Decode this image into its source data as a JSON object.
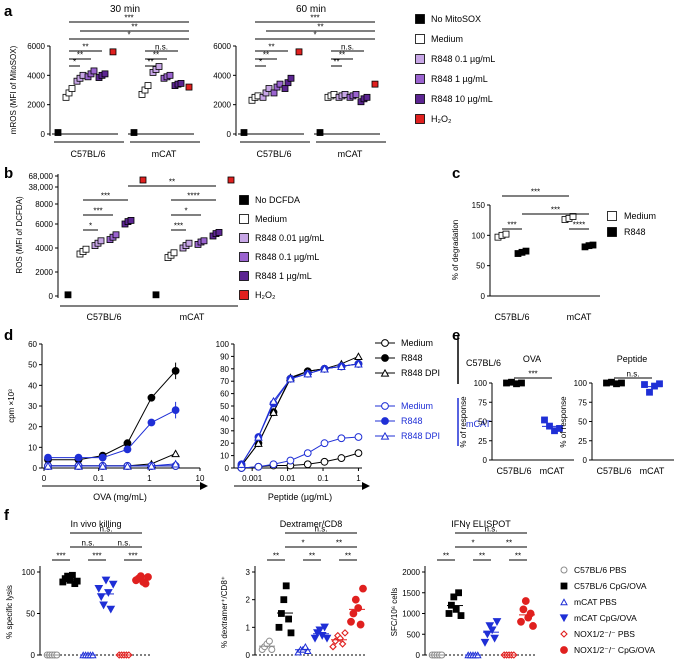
{
  "colors": {
    "black": "#000000",
    "white": "#ffffff",
    "purple_light": "#c7a6e6",
    "purple_mid": "#9a63cf",
    "purple_dark": "#5c2592",
    "red": "#e0201f",
    "blue": "#1f2fd6",
    "blue_light": "#8a92e8",
    "gray": "#8c8c8c"
  },
  "panels": {
    "a": "a",
    "b": "b",
    "c": "c",
    "d": "d",
    "e": "e",
    "f": "f"
  },
  "chart_data": [
    {
      "id": "a-30min",
      "type": "scatter",
      "title": "30 min",
      "ylabel": "mROS (MFI of MitoSOX)",
      "ylim": [
        0,
        6000
      ],
      "yticks": [
        "0",
        "2000",
        "4000",
        "6000"
      ],
      "groups": [
        "C57BL/6",
        "mCAT"
      ],
      "series": [
        {
          "name": "No MitoSOX",
          "values": [
            [
              100
            ],
            [
              100
            ]
          ]
        },
        {
          "name": "Medium",
          "values": [
            [
              2500,
              2800,
              3100
            ],
            [
              2700,
              3000,
              3300
            ]
          ]
        },
        {
          "name": "R848 0.1 µg/mL",
          "values": [
            [
              3600,
              3800,
              4000
            ],
            [
              4200,
              4400,
              4600
            ]
          ]
        },
        {
          "name": "R848 1 µg/mL",
          "values": [
            [
              3900,
              4100,
              4300
            ],
            [
              3800,
              3900,
              4000
            ]
          ]
        },
        {
          "name": "R848 10 µg/mL",
          "values": [
            [
              3850,
              4000,
              4100
            ],
            [
              3300,
              3400,
              3450
            ]
          ]
        },
        {
          "name": "H2O2",
          "values": [
            [
              5600
            ],
            [
              3200
            ]
          ]
        }
      ],
      "significance": [
        "*",
        "**",
        "**",
        "*",
        "**",
        "***",
        "**",
        "**",
        "n.s."
      ]
    },
    {
      "id": "a-60min",
      "type": "scatter",
      "title": "60 min",
      "ylim": [
        0,
        6000
      ],
      "yticks": [
        "0",
        "2000",
        "4000",
        "6000"
      ],
      "groups": [
        "C57BL/6",
        "mCAT"
      ],
      "series": [
        {
          "name": "No MitoSOX",
          "values": [
            [
              100
            ],
            [
              100
            ]
          ]
        },
        {
          "name": "Medium",
          "values": [
            [
              2300,
              2500,
              2600
            ],
            [
              2500,
              2600,
              2700
            ]
          ]
        },
        {
          "name": "R848 0.1 µg/mL",
          "values": [
            [
              2500,
              2800,
              3100
            ],
            [
              2500,
              2600,
              2700
            ]
          ]
        },
        {
          "name": "R848 1 µg/mL",
          "values": [
            [
              2800,
              3200,
              3400
            ],
            [
              2500,
              2600,
              2700
            ]
          ]
        },
        {
          "name": "R848 10 µg/mL",
          "values": [
            [
              3100,
              3500,
              3800
            ],
            [
              2200,
              2400,
              2500
            ]
          ]
        },
        {
          "name": "H2O2",
          "values": [
            [
              5600
            ],
            [
              3400
            ]
          ]
        }
      ],
      "significance": [
        "*",
        "**",
        "**",
        "*",
        "**",
        "***",
        "**",
        "**",
        "n.s."
      ]
    },
    {
      "id": "b",
      "type": "scatter",
      "ylabel": "ROS (MFI of DCFDA)",
      "yticks": [
        "0",
        "2000",
        "4000",
        "6000",
        "8000",
        "38,000",
        "68,000"
      ],
      "groups": [
        "C57BL/6",
        "mCAT"
      ],
      "series": [
        {
          "name": "No DCFDA",
          "values": [
            [
              100
            ],
            [
              100
            ]
          ]
        },
        {
          "name": "Medium",
          "values": [
            [
              3500,
              3700,
              3900
            ],
            [
              3200,
              3400,
              3600
            ]
          ]
        },
        {
          "name": "R848 0.01 µg/mL",
          "values": [
            [
              4200,
              4400,
              4600
            ],
            [
              4000,
              4200,
              4400
            ]
          ]
        },
        {
          "name": "R848 0.1 µg/mL",
          "values": [
            [
              4700,
              4900,
              5100
            ],
            [
              4300,
              4500,
              4600
            ]
          ]
        },
        {
          "name": "R848 1 µg/mL",
          "values": [
            [
              6000,
              6200,
              6300
            ],
            [
              5000,
              5200,
              5300
            ]
          ]
        },
        {
          "name": "H2O2",
          "values": [
            [
              38000
            ],
            [
              38000
            ]
          ]
        }
      ],
      "significance": [
        "*",
        "***",
        "***",
        "***",
        "*",
        "****",
        "**"
      ]
    },
    {
      "id": "c",
      "type": "scatter",
      "ylabel": "% of degradation",
      "ylim": [
        0,
        150
      ],
      "yticks": [
        "0",
        "50",
        "100",
        "150"
      ],
      "groups": [
        "C57BL/6",
        "mCAT"
      ],
      "series": [
        {
          "name": "Medium",
          "values": [
            [
              97,
              100,
              102
            ],
            [
              126,
              128,
              131
            ]
          ]
        },
        {
          "name": "R848",
          "values": [
            [
              70,
              72,
              74
            ],
            [
              81,
              83,
              84
            ]
          ]
        }
      ],
      "significance": [
        "***",
        "**",
        "***",
        "****"
      ]
    },
    {
      "id": "d-ova",
      "type": "line",
      "xlabel": "OVA (mg/mL)",
      "ylabel": "cpm ×10³",
      "ylim": [
        0,
        60
      ],
      "yticks": [
        "0",
        "10",
        "20",
        "30",
        "40",
        "50",
        "60"
      ],
      "xticks": [
        "0",
        "0.1",
        "1",
        "10"
      ],
      "x": [
        0.01,
        0.04,
        0.12,
        0.37,
        1.1,
        3.3
      ],
      "series": [
        {
          "name": "C57BL/6 Medium",
          "values": [
            1,
            1,
            1,
            1,
            1,
            1
          ]
        },
        {
          "name": "C57BL/6 R848",
          "values": [
            4,
            4,
            6,
            12,
            34,
            47
          ]
        },
        {
          "name": "C57BL/6 R848 DPI",
          "values": [
            1,
            1,
            1,
            1,
            2,
            7
          ]
        },
        {
          "name": "mCAT Medium",
          "values": [
            1,
            1,
            1,
            1,
            1,
            1
          ]
        },
        {
          "name": "mCAT R848",
          "values": [
            5,
            5,
            5,
            9,
            22,
            28
          ]
        },
        {
          "name": "mCAT R848 DPI",
          "values": [
            1,
            1,
            1,
            1,
            1,
            2
          ]
        }
      ]
    },
    {
      "id": "d-peptide",
      "type": "line",
      "xlabel": "Peptide (µg/mL)",
      "ylim": [
        0,
        100
      ],
      "yticks": [
        "0",
        "10",
        "20",
        "30",
        "40",
        "50",
        "60",
        "70",
        "80",
        "90",
        "100"
      ],
      "xticks": [
        "0.001",
        "0.01",
        "0.1",
        "1"
      ],
      "x": [
        0.0005,
        0.0015,
        0.004,
        0.012,
        0.037,
        0.11,
        0.33,
        1
      ],
      "series": [
        {
          "name": "C57BL/6 Medium",
          "values": [
            0,
            1,
            2,
            2,
            3,
            5,
            8,
            12
          ]
        },
        {
          "name": "C57BL/6 R848",
          "values": [
            2,
            20,
            45,
            72,
            78,
            80,
            82,
            84
          ]
        },
        {
          "name": "C57BL/6 R848 DPI",
          "values": [
            2,
            20,
            45,
            73,
            78,
            80,
            84,
            90
          ]
        },
        {
          "name": "mCAT Medium",
          "values": [
            0,
            1,
            3,
            6,
            12,
            20,
            24,
            25
          ]
        },
        {
          "name": "mCAT R848",
          "values": [
            3,
            25,
            52,
            72,
            76,
            80,
            82,
            84
          ]
        },
        {
          "name": "mCAT R848 DPI",
          "values": [
            3,
            25,
            54,
            72,
            76,
            80,
            82,
            84
          ]
        }
      ],
      "legend": {
        "c57_title": "C57BL/6",
        "mcat_title": "mCAT",
        "labels": [
          "Medium",
          "R848",
          "R848 DPI"
        ]
      }
    },
    {
      "id": "e-ova",
      "type": "scatter",
      "title": "OVA",
      "ylabel": "% of response",
      "ylim": [
        0,
        100
      ],
      "yticks": [
        "0",
        "25",
        "50",
        "75",
        "100"
      ],
      "groups": [
        "C57BL/6",
        "mCAT"
      ],
      "series": [
        {
          "name": "C57BL/6",
          "values": [
            100,
            101,
            99,
            100
          ]
        },
        {
          "name": "mCAT",
          "values": [
            52,
            44,
            38,
            41
          ]
        }
      ],
      "significance": [
        "***"
      ]
    },
    {
      "id": "e-peptide",
      "type": "scatter",
      "title": "Peptide",
      "ylabel": "% of response",
      "ylim": [
        0,
        100
      ],
      "yticks": [
        "0",
        "25",
        "50",
        "75",
        "100"
      ],
      "groups": [
        "C57BL/6",
        "mCAT"
      ],
      "series": [
        {
          "name": "C57BL/6",
          "values": [
            100,
            101,
            99,
            100
          ]
        },
        {
          "name": "mCAT",
          "values": [
            98,
            88,
            96,
            99
          ]
        }
      ],
      "significance": [
        "n.s."
      ]
    },
    {
      "id": "f-killing",
      "type": "scatter",
      "title": "In vivo killing",
      "ylabel": "% specific lysis",
      "ylim": [
        0,
        100
      ],
      "yticks": [
        "0",
        "50",
        "100"
      ],
      "series": [
        {
          "name": "C57BL/6 PBS",
          "values": [
            0,
            0,
            0,
            0,
            0
          ]
        },
        {
          "name": "C57BL/6 CpG/OVA",
          "values": [
            88,
            92,
            95,
            90,
            96,
            86,
            89
          ]
        },
        {
          "name": "mCAT PBS",
          "values": [
            0,
            0,
            0,
            0,
            0
          ]
        },
        {
          "name": "mCAT CpG/OVA",
          "values": [
            80,
            70,
            60,
            90,
            75,
            55,
            85
          ]
        },
        {
          "name": "NOX1/2-/- PBS",
          "values": [
            0,
            0,
            0,
            0,
            0
          ]
        },
        {
          "name": "NOX1/2-/- CpG/OVA",
          "values": [
            90,
            92,
            95,
            88,
            86,
            94
          ]
        }
      ],
      "significance": [
        "***",
        "n.s.",
        "***",
        "***",
        "n.s.",
        "n.s."
      ]
    },
    {
      "id": "f-dextramer",
      "type": "scatter",
      "title": "Dextramer/CD8",
      "ylabel": "% dextramer⁺/CD8⁺",
      "ylim": [
        0,
        3
      ],
      "yticks": [
        "0",
        "1",
        "2",
        "3"
      ],
      "series": [
        {
          "name": "C57BL/6 PBS",
          "values": [
            0.2,
            0.3,
            0.4,
            0.5,
            0.2
          ]
        },
        {
          "name": "C57BL/6 CpG/OVA",
          "values": [
            1.0,
            1.5,
            2.0,
            2.5,
            1.3,
            0.8
          ]
        },
        {
          "name": "mCAT PBS",
          "values": [
            0.1,
            0.2,
            0.2,
            0.3,
            0.15
          ]
        },
        {
          "name": "mCAT CpG/OVA",
          "values": [
            0.6,
            0.8,
            0.9,
            0.7,
            1.0,
            0.6
          ]
        },
        {
          "name": "NOX1/2-/- PBS",
          "values": [
            0.3,
            0.5,
            0.7,
            0.6,
            0.4,
            0.8
          ]
        },
        {
          "name": "NOX1/2-/- CpG/OVA",
          "values": [
            1.2,
            1.5,
            2.0,
            1.7,
            1.1,
            2.4
          ]
        }
      ],
      "significance": [
        "**",
        "*",
        "**",
        "**",
        "**",
        "n.s."
      ]
    },
    {
      "id": "f-elispot",
      "type": "scatter",
      "title": "IFNγ ELISPOT",
      "ylabel": "SFC/10⁶ cells",
      "ylim": [
        0,
        2000
      ],
      "yticks": [
        "0",
        "500",
        "1000",
        "1500",
        "2000"
      ],
      "series": [
        {
          "name": "C57BL/6 PBS",
          "values": [
            0,
            0,
            0,
            0,
            0
          ]
        },
        {
          "name": "C57BL/6 CpG/OVA",
          "values": [
            1000,
            1200,
            1400,
            1100,
            1500,
            950
          ]
        },
        {
          "name": "mCAT PBS",
          "values": [
            0,
            0,
            0,
            0,
            0
          ]
        },
        {
          "name": "mCAT CpG/OVA",
          "values": [
            300,
            500,
            700,
            600,
            400,
            800
          ]
        },
        {
          "name": "NOX1/2-/- PBS",
          "values": [
            0,
            0,
            0,
            0,
            0
          ]
        },
        {
          "name": "NOX1/2-/- CpG/OVA",
          "values": [
            800,
            1100,
            1300,
            900,
            1000,
            700
          ]
        }
      ],
      "significance": [
        "**",
        "*",
        "**",
        "**",
        "**",
        "n.s."
      ]
    }
  ],
  "legend_a": [
    "No MitoSOX",
    "Medium",
    "R848 0.1 µg/mL",
    "R848 1 µg/mL",
    "R848 10 µg/mL",
    "H₂O₂"
  ],
  "legend_b": [
    "No DCFDA",
    "Medium",
    "R848 0.01 µg/mL",
    "R848 0.1 µg/mL",
    "R848 1 µg/mL",
    "H₂O₂"
  ],
  "legend_c": [
    "Medium",
    "R848"
  ],
  "legend_f": [
    "C57BL/6 PBS",
    "C57BL/6 CpG/OVA",
    "mCAT PBS",
    "mCAT CpG/OVA",
    "NOX1/2⁻/⁻ PBS",
    "NOX1/2⁻/⁻ CpG/OVA"
  ]
}
